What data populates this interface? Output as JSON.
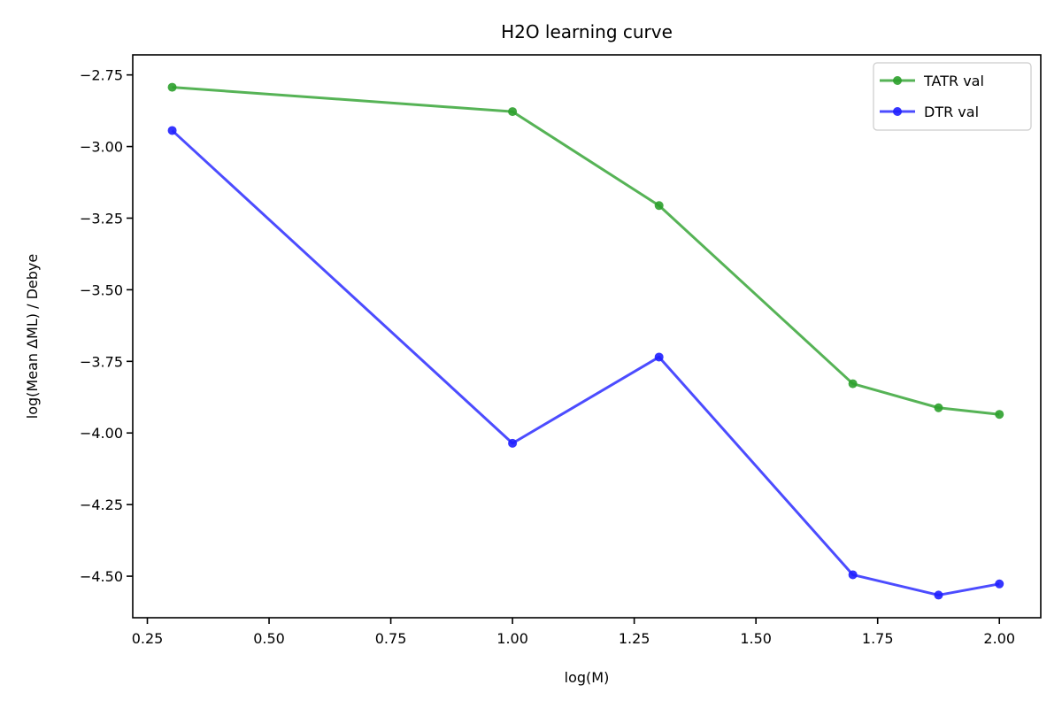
{
  "chart_data": {
    "type": "line",
    "title": "H2O learning curve",
    "xlabel": "log(M)",
    "ylabel": "log(Mean ΔML) / Debye",
    "xlim": [
      0.22,
      2.085
    ],
    "ylim": [
      -4.645,
      -2.68
    ],
    "xticks": [
      0.25,
      0.5,
      0.75,
      1.0,
      1.25,
      1.5,
      1.75,
      2.0
    ],
    "xtick_labels": [
      "0.25",
      "0.50",
      "0.75",
      "1.00",
      "1.25",
      "1.50",
      "1.75",
      "2.00"
    ],
    "yticks": [
      -2.75,
      -3.0,
      -3.25,
      -3.5,
      -3.75,
      -4.0,
      -4.25,
      -4.5
    ],
    "ytick_labels": [
      "−2.75",
      "−3.00",
      "−3.25",
      "−3.50",
      "−3.75",
      "−4.00",
      "−4.25",
      "−4.50"
    ],
    "grid": false,
    "legend_position": "top-right",
    "x": [
      0.301,
      1.0,
      1.301,
      1.699,
      1.875,
      2.0
    ],
    "series": [
      {
        "name": "TATR val",
        "color": "#2ca02c",
        "values": [
          -2.793,
          -2.878,
          -3.206,
          -3.828,
          -3.912,
          -3.935
        ]
      },
      {
        "name": "DTR val",
        "color": "#1f1fff",
        "values": [
          -2.944,
          -4.036,
          -3.735,
          -4.495,
          -4.566,
          -4.527
        ]
      }
    ]
  }
}
